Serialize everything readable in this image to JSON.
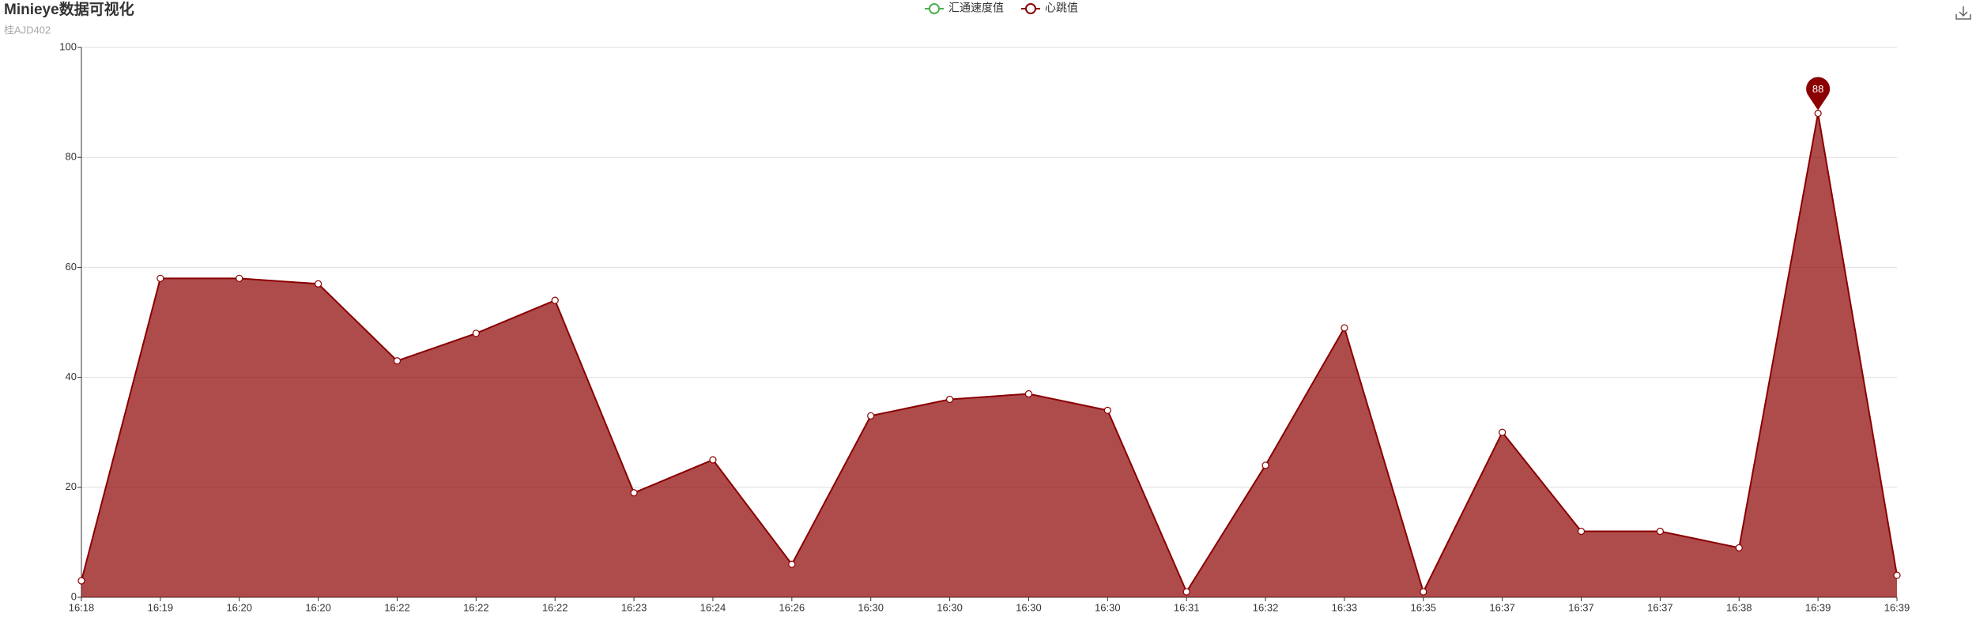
{
  "chart_data": {
    "type": "area",
    "title": "Minieye数据可视化",
    "subtitle": "桂AJD402",
    "categories": [
      "16:18",
      "16:19",
      "16:20",
      "16:20",
      "16:22",
      "16:22",
      "16:22",
      "16:23",
      "16:24",
      "16:26",
      "16:30",
      "16:30",
      "16:30",
      "16:30",
      "16:31",
      "16:32",
      "16:33",
      "16:35",
      "16:37",
      "16:37",
      "16:37",
      "16:38",
      "16:39",
      "16:39"
    ],
    "series": [
      {
        "name": "汇通速度值",
        "color": "#4caf50",
        "values": [
          null,
          null,
          null,
          null,
          null,
          null,
          null,
          null,
          null,
          null,
          null,
          null,
          null,
          null,
          null,
          null,
          null,
          null,
          null,
          null,
          null,
          null,
          null,
          null
        ]
      },
      {
        "name": "心跳值",
        "color": "#8b0000",
        "values": [
          3,
          58,
          58,
          57,
          43,
          48,
          54,
          19,
          25,
          6,
          33,
          36,
          37,
          34,
          1,
          24,
          49,
          1,
          30,
          12,
          12,
          9,
          88,
          4
        ]
      }
    ],
    "ylim": [
      0,
      100
    ],
    "yticks": [
      0,
      20,
      40,
      60,
      80,
      100
    ],
    "grid": true,
    "legend": "top"
  }
}
